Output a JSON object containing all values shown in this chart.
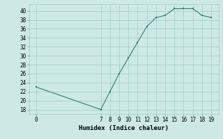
{
  "x": [
    0,
    7,
    8,
    9,
    10,
    11,
    12,
    13,
    14,
    15,
    16,
    17,
    18,
    19
  ],
  "y": [
    23,
    18,
    22,
    26,
    29.5,
    33,
    36.5,
    38.5,
    39,
    40.5,
    40.5,
    40.5,
    39,
    38.5
  ],
  "line_color": "#2e7d6e",
  "marker_color": "#2e7d6e",
  "bg_color": "#cce9e5",
  "grid_color": "#a0ccc8",
  "xlabel": "Humidex (Indice chaleur)",
  "ylabel_ticks": [
    18,
    20,
    22,
    24,
    26,
    28,
    30,
    32,
    34,
    36,
    38,
    40
  ],
  "xticks": [
    0,
    7,
    8,
    9,
    10,
    11,
    12,
    13,
    14,
    15,
    16,
    17,
    18,
    19
  ],
  "xlim": [
    -0.8,
    19.8
  ],
  "ylim": [
    17.0,
    41.5
  ],
  "tick_fontsize": 5.5,
  "xlabel_fontsize": 6.5
}
